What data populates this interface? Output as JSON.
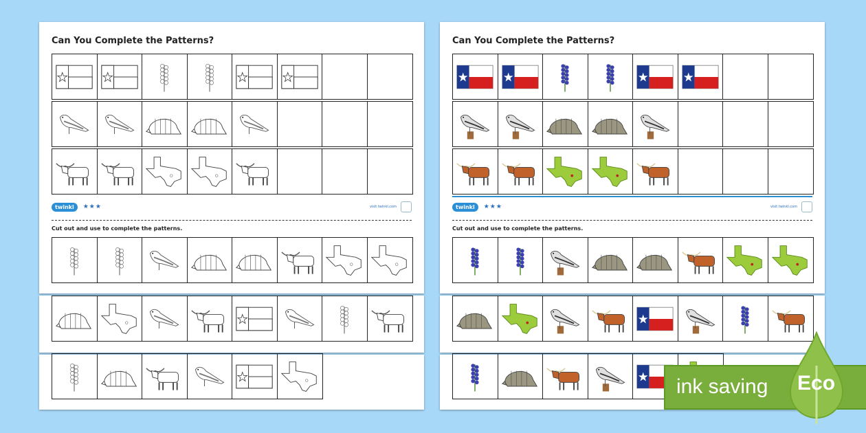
{
  "worksheets": [
    {
      "variant": "outline",
      "title": "Can You Complete the Patterns?",
      "cut_label": "Cut out and use to complete the patterns.",
      "footer": {
        "logo": "twinkl",
        "stars": "★★★",
        "visit": "visit twinkl.com"
      }
    },
    {
      "variant": "color",
      "title": "Can You Complete the Patterns?",
      "cut_label": "Cut out and use to complete the patterns.",
      "footer": {
        "logo": "twinkl",
        "stars": "★★★",
        "visit": "visit twinkl.com"
      }
    }
  ],
  "pattern_rows": [
    [
      "texas-flag",
      "texas-flag",
      "bluebonnet",
      "bluebonnet",
      "texas-flag",
      "texas-flag",
      "",
      ""
    ],
    [
      "mockingbird",
      "mockingbird",
      "armadillo",
      "armadillo",
      "mockingbird",
      "",
      "",
      ""
    ],
    [
      "longhorn",
      "longhorn",
      "texas-map",
      "texas-map",
      "longhorn",
      "",
      "",
      ""
    ]
  ],
  "cutout_rows": [
    [
      "bluebonnet",
      "bluebonnet",
      "mockingbird",
      "armadillo",
      "armadillo",
      "longhorn",
      "texas-map",
      "texas-map"
    ],
    [
      "armadillo",
      "texas-map",
      "mockingbird",
      "longhorn",
      "texas-flag",
      "mockingbird",
      "bluebonnet",
      "longhorn"
    ],
    [
      "bluebonnet",
      "armadillo",
      "longhorn",
      "mockingbird",
      "texas-flag",
      "texas-map"
    ]
  ],
  "eco_badge": {
    "label": "ink saving",
    "word": "Eco"
  },
  "colors": {
    "background": "#a8d8f8",
    "brand": "#2a8fd6",
    "eco_green": "#7aae3c",
    "flag_blue": "#1d3a8f",
    "flag_red": "#d62020",
    "map_green": "#9ccc3c"
  }
}
